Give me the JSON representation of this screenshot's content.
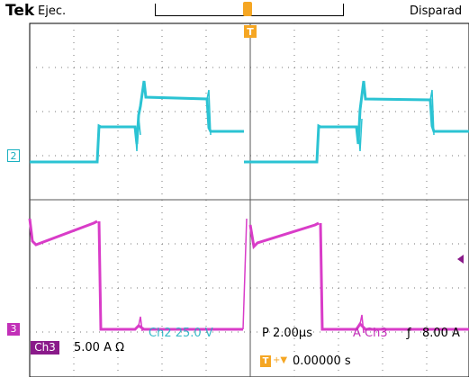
{
  "header": {
    "brand": "Tek",
    "run_status": "Ejec.",
    "trigger_status": "Disparad"
  },
  "channels": {
    "ch2": {
      "marker": "2",
      "color": "#1ab0c0",
      "readout": "Ch2  25.0 V"
    },
    "ch3": {
      "marker": "3",
      "color": "#c22fb8",
      "badge": "Ch3",
      "scale": "5.00 A Ω"
    }
  },
  "horizontal": {
    "timebase": "P 2.00µs",
    "trigger_source": "A  Ch3",
    "trigger_slope": "ƒ",
    "trigger_level": "8.00 A",
    "trigger_position_icon": "T",
    "trigger_position_arrow": "+▼",
    "trigger_position": "0.00000 s"
  },
  "icons": {
    "trigger_top": "trigger-marker-icon",
    "trigger_level": "trigger-level-arrow-icon"
  }
}
